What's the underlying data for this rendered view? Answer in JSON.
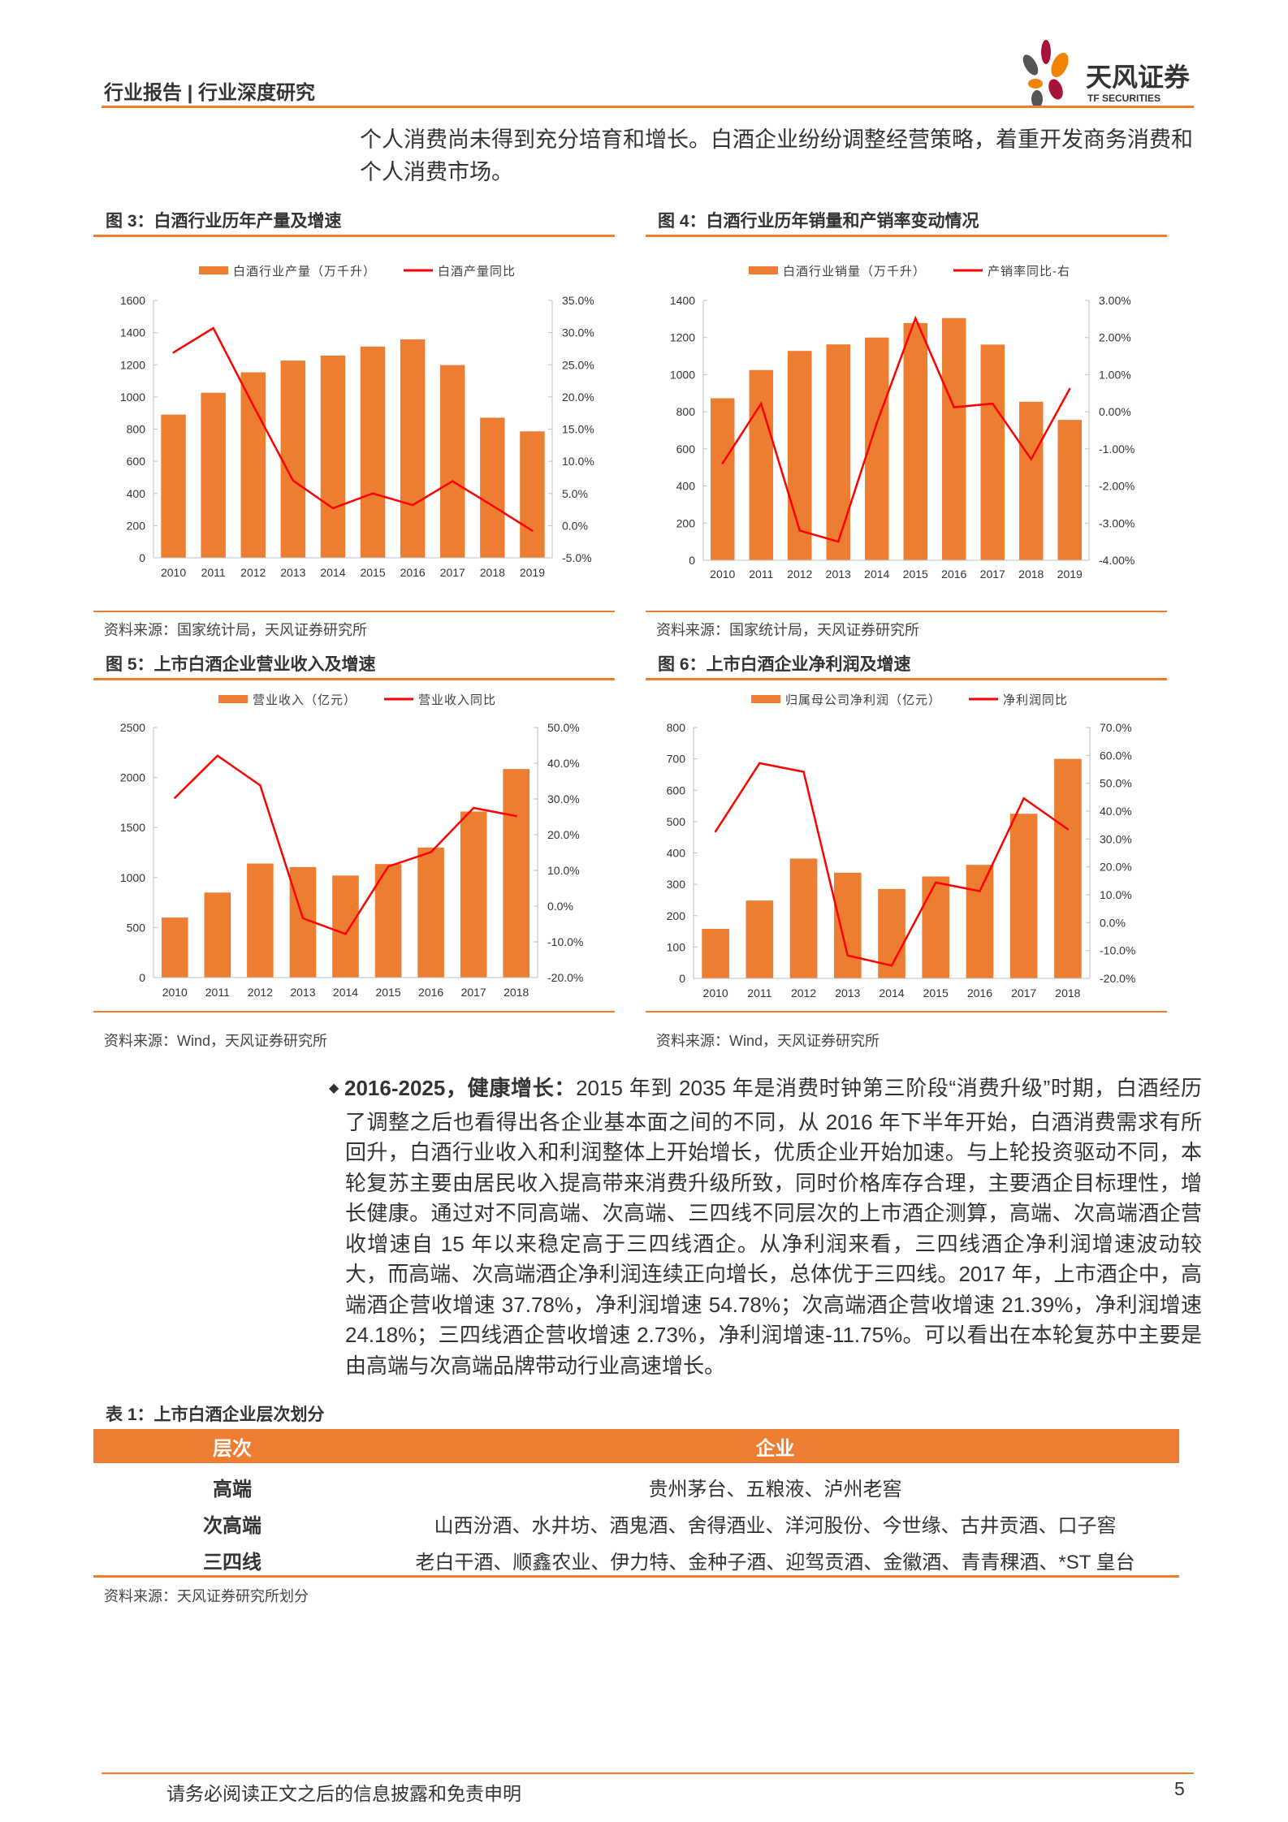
{
  "header": {
    "title": "行业报告 | 行业深度研究",
    "logo_text": "天风证券",
    "logo_sub": "TF SECURITIES"
  },
  "intro_paragraph": "个人消费尚未得到充分培育和增长。白酒企业纷纷调整经营策略，着重开发商务消费和个人消费市场。",
  "colors": {
    "accent": "#ED7D31",
    "bar": "#ED7D31",
    "line": "#FF0000"
  },
  "figures": [
    {
      "title": "图 3：白酒行业历年产量及增速",
      "source": "资料来源：国家统计局，天风证券研究所"
    },
    {
      "title": "图 4：白酒行业历年销量和产销率变动情况",
      "source": "资料来源：国家统计局，天风证券研究所"
    },
    {
      "title": "图 5：上市白酒企业营业收入及增速",
      "source": "资料来源：Wind，天风证券研究所"
    },
    {
      "title": "图 6：上市白酒企业净利润及增速",
      "source": "资料来源：Wind，天风证券研究所"
    }
  ],
  "chart_data": [
    {
      "type": "bar+line",
      "categories": [
        "2010",
        "2011",
        "2012",
        "2013",
        "2014",
        "2015",
        "2016",
        "2017",
        "2018",
        "2019"
      ],
      "series": [
        {
          "name": "白酒行业产量（万千升）",
          "type": "bar",
          "axis": "left",
          "values": [
            890,
            1026,
            1153,
            1226,
            1257,
            1313,
            1358,
            1198,
            871,
            786
          ]
        },
        {
          "name": "白酒产量同比",
          "type": "line",
          "axis": "right",
          "values": [
            26.9,
            30.7,
            18.7,
            7.0,
            2.7,
            5.0,
            3.2,
            6.9,
            3.1,
            -0.8
          ]
        }
      ],
      "left_ticks": [
        "0",
        "200",
        "400",
        "600",
        "800",
        "1000",
        "1200",
        "1400",
        "1600"
      ],
      "ylim": [
        0,
        1600
      ],
      "right_ticks": [
        "-5.0%",
        "0.0%",
        "5.0%",
        "10.0%",
        "15.0%",
        "20.0%",
        "25.0%",
        "30.0%",
        "35.0%"
      ],
      "y2lim": [
        -5,
        35
      ],
      "legend": "top"
    },
    {
      "type": "bar+line",
      "categories": [
        "2010",
        "2011",
        "2012",
        "2013",
        "2014",
        "2015",
        "2016",
        "2017",
        "2018",
        "2019"
      ],
      "series": [
        {
          "name": "白酒行业销量（万千升）",
          "type": "bar",
          "axis": "left",
          "values": [
            873,
            1025,
            1128,
            1163,
            1200,
            1278,
            1305,
            1162,
            854,
            756
          ]
        },
        {
          "name": "产销率同比-右",
          "type": "line",
          "axis": "right",
          "values": [
            -1.39,
            0.22,
            -3.2,
            -3.5,
            -0.3,
            2.52,
            0.12,
            0.22,
            -1.28,
            0.62
          ]
        }
      ],
      "left_ticks": [
        "0",
        "200",
        "400",
        "600",
        "800",
        "1000",
        "1200",
        "1400"
      ],
      "ylim": [
        0,
        1400
      ],
      "right_ticks": [
        "-4.00%",
        "-3.00%",
        "-2.00%",
        "-1.00%",
        "0.00%",
        "1.00%",
        "2.00%",
        "3.00%"
      ],
      "y2lim": [
        -4,
        3
      ],
      "legend": "top"
    },
    {
      "type": "bar+line",
      "categories": [
        "2010",
        "2011",
        "2012",
        "2013",
        "2014",
        "2015",
        "2016",
        "2017",
        "2018"
      ],
      "series": [
        {
          "name": "营业收入（亿元）",
          "type": "bar",
          "axis": "left",
          "values": [
            600,
            850,
            1140,
            1105,
            1020,
            1135,
            1300,
            1660,
            2085
          ]
        },
        {
          "name": "营业收入同比",
          "type": "line",
          "axis": "right",
          "values": [
            30.3,
            42.1,
            33.8,
            -3.4,
            -7.8,
            11.1,
            15.1,
            27.5,
            25.2
          ]
        }
      ],
      "left_ticks": [
        "0",
        "500",
        "1000",
        "1500",
        "2000",
        "2500"
      ],
      "ylim": [
        0,
        2500
      ],
      "right_ticks": [
        "-20.0%",
        "-10.0%",
        "0.0%",
        "10.0%",
        "20.0%",
        "30.0%",
        "40.0%",
        "50.0%"
      ],
      "y2lim": [
        -20,
        50
      ],
      "legend": "top"
    },
    {
      "type": "bar+line",
      "categories": [
        "2010",
        "2011",
        "2012",
        "2013",
        "2014",
        "2015",
        "2016",
        "2017",
        "2018"
      ],
      "series": [
        {
          "name": "归属母公司净利润（亿元）",
          "type": "bar",
          "axis": "left",
          "values": [
            158,
            248,
            382,
            337,
            285,
            325,
            362,
            525,
            700
          ]
        },
        {
          "name": "净利润同比",
          "type": "line",
          "axis": "right",
          "values": [
            32.7,
            57.2,
            54.1,
            -11.8,
            -15.4,
            14.4,
            11.3,
            44.6,
            33.5
          ]
        }
      ],
      "left_ticks": [
        "0",
        "100",
        "200",
        "300",
        "400",
        "500",
        "600",
        "700",
        "800"
      ],
      "ylim": [
        0,
        800
      ],
      "right_ticks": [
        "-20.0%",
        "-10.0%",
        "0.0%",
        "10.0%",
        "20.0%",
        "30.0%",
        "40.0%",
        "50.0%",
        "60.0%",
        "70.0%"
      ],
      "y2lim": [
        -20,
        70
      ],
      "legend": "top"
    }
  ],
  "section": {
    "bullet_icon": "diamond-bullet",
    "lead": "2016-2025，健康增长：",
    "text": "2015 年到 2035 年是消费时钟第三阶段“消费升级”时期，白酒经历了调整之后也看得出各企业基本面之间的不同，从 2016 年下半年开始，白酒消费需求有所回升，白酒行业收入和利润整体上开始增长，优质企业开始加速。与上轮投资驱动不同，本轮复苏主要由居民收入提高带来消费升级所致，同时价格库存合理，主要酒企目标理性，增长健康。通过对不同高端、次高端、三四线不同层次的上市酒企测算，高端、次高端酒企营收增速自 15 年以来稳定高于三四线酒企。从净利润来看，三四线酒企净利润增速波动较大，而高端、次高端酒企净利润连续正向增长，总体优于三四线。2017 年，上市酒企中，高端酒企营收增速 37.78%，净利润增速 54.78%；次高端酒企营收增速 21.39%，净利润增速 24.18%；三四线酒企营收增速 2.73%，净利润增速-11.75%。可以看出在本轮复苏中主要是由高端与次高端品牌带动行业高速增长。"
  },
  "table": {
    "title": "表 1：上市白酒企业层次划分",
    "headers": [
      "层次",
      "企业"
    ],
    "rows": [
      [
        "高端",
        "贵州茅台、五粮液、泸州老窖"
      ],
      [
        "次高端",
        "山西汾酒、水井坊、酒鬼酒、舍得酒业、洋河股份、今世缘、古井贡酒、口子窖"
      ],
      [
        "三四线",
        "老白干酒、顺鑫农业、伊力特、金种子酒、迎驾贡酒、金徽酒、青青稞酒、*ST 皇台"
      ]
    ],
    "source": "资料来源：天风证券研究所划分"
  },
  "footer": {
    "disclaimer": "请务必阅读正文之后的信息披露和免责申明",
    "page": "5"
  }
}
